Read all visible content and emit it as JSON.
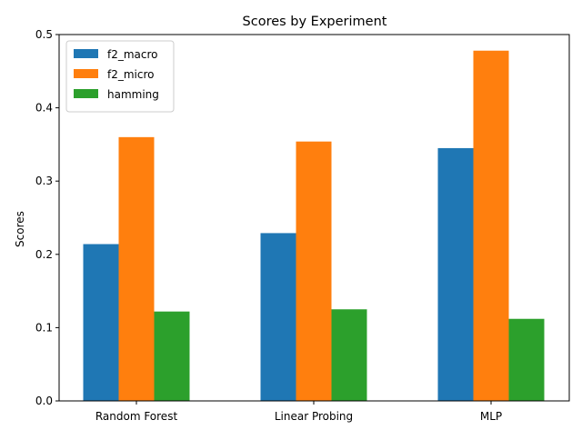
{
  "chart_data": {
    "type": "bar",
    "title": "Scores by Experiment",
    "xlabel": "",
    "ylabel": "Scores",
    "categories": [
      "Random Forest",
      "Linear Probing",
      "MLP"
    ],
    "series": [
      {
        "name": "f2_macro",
        "color": "#1f77b4",
        "values": [
          0.214,
          0.229,
          0.345
        ]
      },
      {
        "name": "f2_micro",
        "color": "#ff7f0e",
        "values": [
          0.36,
          0.354,
          0.478
        ]
      },
      {
        "name": "hamming",
        "color": "#2ca02c",
        "values": [
          0.122,
          0.125,
          0.112
        ]
      }
    ],
    "ylim": [
      0,
      0.5
    ],
    "yticks": [
      "0.0",
      "0.1",
      "0.2",
      "0.3",
      "0.4",
      "0.5"
    ],
    "grid": false,
    "legend_position": "top-left"
  }
}
